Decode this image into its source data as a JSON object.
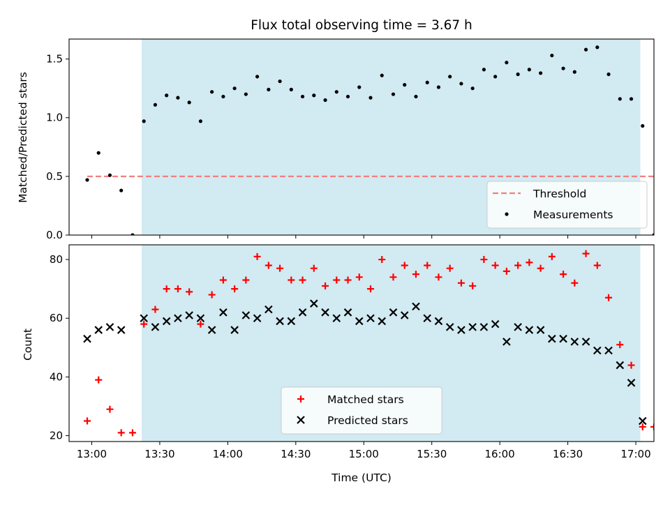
{
  "chart_data": [
    {
      "type": "scatter",
      "title": "Flux total observing time = 3.67 h",
      "xlabel": "",
      "ylabel": "Matched/Predicted stars",
      "ylim": [
        0,
        1.67
      ],
      "yticks": [
        "0.0",
        "0.5",
        "1.0",
        "1.5"
      ],
      "shaded_region": {
        "start": "13:22",
        "end": "17:02",
        "color": "#add8e6"
      },
      "threshold": {
        "name": "Threshold",
        "value": 0.5,
        "start": "12:58",
        "end": "17:08",
        "color": "#f08080",
        "style": "dashed"
      },
      "legend": {
        "placement": "lower-right",
        "entries": [
          "Threshold",
          "Measurements"
        ]
      },
      "series": [
        {
          "name": "Measurements",
          "color": "#000000",
          "marker": "dot",
          "points": [
            [
              "12:58",
              0.47
            ],
            [
              "13:03",
              0.7
            ],
            [
              "13:08",
              0.51
            ],
            [
              "13:13",
              0.38
            ],
            [
              "13:18",
              0.0
            ],
            [
              "13:23",
              0.97
            ],
            [
              "13:28",
              1.11
            ],
            [
              "13:33",
              1.19
            ],
            [
              "13:38",
              1.17
            ],
            [
              "13:43",
              1.13
            ],
            [
              "13:48",
              0.97
            ],
            [
              "13:53",
              1.22
            ],
            [
              "13:58",
              1.18
            ],
            [
              "14:03",
              1.25
            ],
            [
              "14:08",
              1.2
            ],
            [
              "14:13",
              1.35
            ],
            [
              "14:18",
              1.24
            ],
            [
              "14:23",
              1.31
            ],
            [
              "14:28",
              1.24
            ],
            [
              "14:33",
              1.18
            ],
            [
              "14:38",
              1.19
            ],
            [
              "14:43",
              1.15
            ],
            [
              "14:48",
              1.22
            ],
            [
              "14:53",
              1.18
            ],
            [
              "14:58",
              1.26
            ],
            [
              "15:03",
              1.17
            ],
            [
              "15:08",
              1.36
            ],
            [
              "15:13",
              1.2
            ],
            [
              "15:18",
              1.28
            ],
            [
              "15:23",
              1.18
            ],
            [
              "15:28",
              1.3
            ],
            [
              "15:33",
              1.26
            ],
            [
              "15:38",
              1.35
            ],
            [
              "15:43",
              1.29
            ],
            [
              "15:48",
              1.25
            ],
            [
              "15:53",
              1.41
            ],
            [
              "15:58",
              1.35
            ],
            [
              "16:03",
              1.47
            ],
            [
              "16:08",
              1.37
            ],
            [
              "16:13",
              1.41
            ],
            [
              "16:18",
              1.38
            ],
            [
              "16:23",
              1.53
            ],
            [
              "16:28",
              1.42
            ],
            [
              "16:33",
              1.39
            ],
            [
              "16:38",
              1.58
            ],
            [
              "16:43",
              1.6
            ],
            [
              "16:48",
              1.37
            ],
            [
              "16:53",
              1.16
            ],
            [
              "16:58",
              1.16
            ],
            [
              "17:03",
              0.93
            ],
            [
              "17:08",
              0.0
            ]
          ]
        }
      ]
    },
    {
      "type": "scatter",
      "title": "",
      "xlabel": "Time (UTC)",
      "ylabel": "Count",
      "xlim": [
        "12:50",
        "17:08"
      ],
      "xticks": [
        "13:00",
        "13:30",
        "14:00",
        "14:30",
        "15:00",
        "15:30",
        "16:00",
        "16:30",
        "17:00"
      ],
      "ylim": [
        18,
        85
      ],
      "yticks": [
        "20",
        "40",
        "60",
        "80"
      ],
      "shaded_region": {
        "start": "13:22",
        "end": "17:02",
        "color": "#add8e6"
      },
      "legend": {
        "placement": "lower-center",
        "entries": [
          "Matched stars",
          "Predicted stars"
        ]
      },
      "series": [
        {
          "name": "Matched stars",
          "color": "#ff0000",
          "marker": "plus",
          "points": [
            [
              "12:58",
              25
            ],
            [
              "13:03",
              39
            ],
            [
              "13:08",
              29
            ],
            [
              "13:13",
              21
            ],
            [
              "13:18",
              21
            ],
            [
              "13:23",
              58
            ],
            [
              "13:28",
              63
            ],
            [
              "13:33",
              70
            ],
            [
              "13:38",
              70
            ],
            [
              "13:43",
              69
            ],
            [
              "13:48",
              58
            ],
            [
              "13:53",
              68
            ],
            [
              "13:58",
              73
            ],
            [
              "14:03",
              70
            ],
            [
              "14:08",
              73
            ],
            [
              "14:13",
              81
            ],
            [
              "14:18",
              78
            ],
            [
              "14:23",
              77
            ],
            [
              "14:28",
              73
            ],
            [
              "14:33",
              73
            ],
            [
              "14:38",
              77
            ],
            [
              "14:43",
              71
            ],
            [
              "14:48",
              73
            ],
            [
              "14:53",
              73
            ],
            [
              "14:58",
              74
            ],
            [
              "15:03",
              70
            ],
            [
              "15:08",
              80
            ],
            [
              "15:13",
              74
            ],
            [
              "15:18",
              78
            ],
            [
              "15:23",
              75
            ],
            [
              "15:28",
              78
            ],
            [
              "15:33",
              74
            ],
            [
              "15:38",
              77
            ],
            [
              "15:43",
              72
            ],
            [
              "15:48",
              71
            ],
            [
              "15:53",
              80
            ],
            [
              "15:58",
              78
            ],
            [
              "16:03",
              76
            ],
            [
              "16:08",
              78
            ],
            [
              "16:13",
              79
            ],
            [
              "16:18",
              77
            ],
            [
              "16:23",
              81
            ],
            [
              "16:28",
              75
            ],
            [
              "16:33",
              72
            ],
            [
              "16:38",
              82
            ],
            [
              "16:43",
              78
            ],
            [
              "16:48",
              67
            ],
            [
              "16:53",
              51
            ],
            [
              "16:58",
              44
            ],
            [
              "17:03",
              23
            ],
            [
              "17:08",
              23
            ]
          ]
        },
        {
          "name": "Predicted stars",
          "color": "#000000",
          "marker": "x",
          "points": [
            [
              "12:58",
              53
            ],
            [
              "13:03",
              56
            ],
            [
              "13:08",
              57
            ],
            [
              "13:13",
              56
            ],
            [
              "13:23",
              60
            ],
            [
              "13:28",
              57
            ],
            [
              "13:33",
              59
            ],
            [
              "13:38",
              60
            ],
            [
              "13:43",
              61
            ],
            [
              "13:48",
              60
            ],
            [
              "13:53",
              56
            ],
            [
              "13:58",
              62
            ],
            [
              "14:03",
              56
            ],
            [
              "14:08",
              61
            ],
            [
              "14:13",
              60
            ],
            [
              "14:18",
              63
            ],
            [
              "14:23",
              59
            ],
            [
              "14:28",
              59
            ],
            [
              "14:33",
              62
            ],
            [
              "14:38",
              65
            ],
            [
              "14:43",
              62
            ],
            [
              "14:48",
              60
            ],
            [
              "14:53",
              62
            ],
            [
              "14:58",
              59
            ],
            [
              "15:03",
              60
            ],
            [
              "15:08",
              59
            ],
            [
              "15:13",
              62
            ],
            [
              "15:18",
              61
            ],
            [
              "15:23",
              64
            ],
            [
              "15:28",
              60
            ],
            [
              "15:33",
              59
            ],
            [
              "15:38",
              57
            ],
            [
              "15:43",
              56
            ],
            [
              "15:48",
              57
            ],
            [
              "15:53",
              57
            ],
            [
              "15:58",
              58
            ],
            [
              "16:03",
              52
            ],
            [
              "16:08",
              57
            ],
            [
              "16:13",
              56
            ],
            [
              "16:18",
              56
            ],
            [
              "16:23",
              53
            ],
            [
              "16:28",
              53
            ],
            [
              "16:33",
              52
            ],
            [
              "16:38",
              52
            ],
            [
              "16:43",
              49
            ],
            [
              "16:48",
              49
            ],
            [
              "16:53",
              44
            ],
            [
              "16:58",
              38
            ],
            [
              "17:03",
              25
            ]
          ]
        }
      ]
    }
  ]
}
